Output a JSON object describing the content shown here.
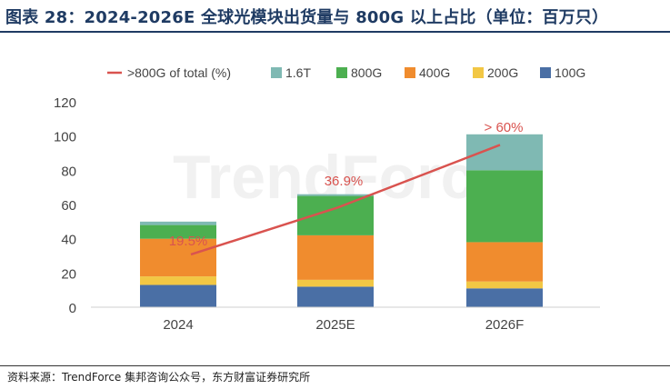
{
  "page": {
    "title": "图表 28：2024-2026E 全球光模块出货量与 800G 以上占比（单位：百万只）",
    "source": "资料来源：TrendForce 集邦咨询公众号，东方财富证券研究所",
    "watermark": "TrendForce"
  },
  "chart_data": {
    "type": "bar",
    "stacked": true,
    "categories": [
      "2024",
      "2025E",
      "2026F"
    ],
    "series": [
      {
        "name": "100G",
        "color": "#4a6fa5",
        "values": [
          13,
          12,
          11
        ]
      },
      {
        "name": "200G",
        "color": "#f2c744",
        "values": [
          5,
          4,
          4
        ]
      },
      {
        "name": "400G",
        "color": "#f08c2e",
        "values": [
          22,
          26,
          23
        ]
      },
      {
        "name": "800G",
        "color": "#4caf50",
        "values": [
          8,
          23,
          42
        ]
      },
      {
        "name": "1.6T",
        "color": "#7fb9b3",
        "values": [
          2,
          1,
          21
        ]
      }
    ],
    "line": {
      "name": ">800G of total (%)",
      "color": "#d9534f",
      "values": [
        19.5,
        36.9,
        60
      ],
      "labels": [
        "19.5%",
        "36.9%",
        "> 60%"
      ]
    },
    "legend_order": [
      ">800G of total (%)",
      "1.6T",
      "800G",
      "400G",
      "200G",
      "100G"
    ],
    "legend_position": "top",
    "ylim": [
      0,
      120
    ],
    "yticks": [
      0,
      20,
      40,
      60,
      80,
      100,
      120
    ],
    "grid": false
  }
}
